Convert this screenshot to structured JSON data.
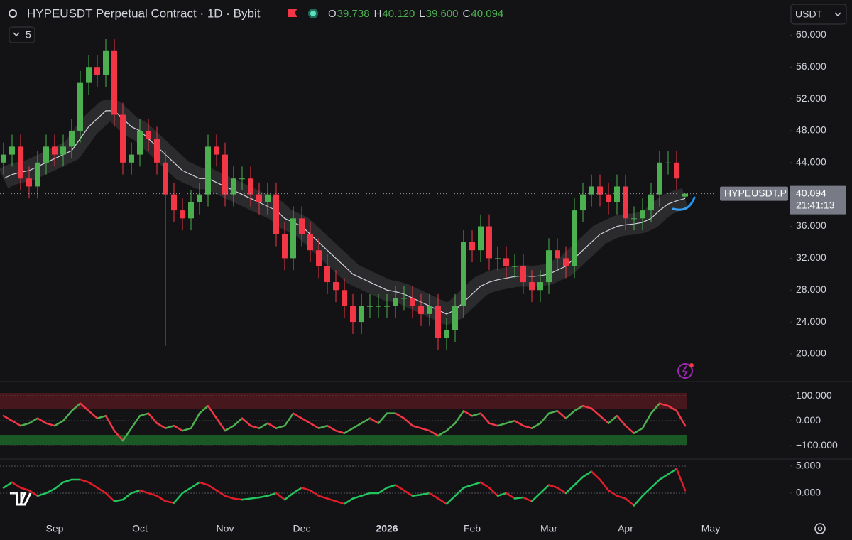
{
  "header": {
    "title": "HYPEUSDT Perpetual Contract · 1D · Bybit",
    "ohlc": [
      {
        "key": "O",
        "value": "39.738"
      },
      {
        "key": "H",
        "value": "40.120"
      },
      {
        "key": "L",
        "value": "39.600"
      },
      {
        "key": "C",
        "value": "40.094"
      }
    ],
    "indicator_count": 5,
    "currency": "USDT"
  },
  "chart_data": [
    {
      "type": "candlestick",
      "categories": [
        null,
        null,
        null,
        null,
        null,
        null,
        "Sep",
        null,
        null,
        null,
        null,
        null,
        null,
        null,
        null,
        null,
        "Oct",
        null,
        null,
        null,
        null,
        null,
        null,
        null,
        null,
        null,
        "Nov",
        null,
        null,
        null,
        null,
        null,
        null,
        null,
        null,
        "Dec",
        null,
        null,
        null,
        null,
        null,
        null,
        null,
        null,
        null,
        "2026",
        null,
        null,
        null,
        null,
        null,
        null,
        null,
        null,
        null,
        "Feb",
        null,
        null,
        null,
        null,
        null,
        null,
        null,
        null,
        "Mar",
        null,
        null,
        null,
        null,
        null,
        null,
        null,
        null,
        "Apr",
        null,
        null,
        null,
        null,
        null,
        null,
        null,
        null,
        null,
        "May",
        null,
        null
      ],
      "open": [
        44,
        45,
        46,
        42,
        41,
        44,
        46,
        45,
        46,
        48,
        54,
        56,
        55,
        58,
        50,
        44,
        45,
        48,
        47,
        44,
        40,
        38,
        37,
        39,
        40,
        46,
        45,
        40,
        42,
        42,
        40,
        39,
        40,
        35,
        32,
        37,
        35,
        33,
        31,
        29,
        28,
        26,
        24,
        26,
        26,
        26,
        26,
        27,
        27,
        26,
        25,
        26,
        22,
        23,
        26,
        34,
        33,
        36,
        32,
        32,
        31,
        31,
        29,
        28,
        29,
        33,
        32,
        31,
        38,
        40,
        41,
        40,
        39,
        41,
        37,
        37,
        38,
        40,
        44,
        44,
        39.738,
        null,
        null,
        null,
        null,
        null
      ],
      "high": [
        46.5,
        47.5,
        47.5,
        43.5,
        45.5,
        47.5,
        47.5,
        47.5,
        49.5,
        55.5,
        57.5,
        57.5,
        59.5,
        59.5,
        51.5,
        46.5,
        49.5,
        49.5,
        48.5,
        45.5,
        41.5,
        39.5,
        40.5,
        41.5,
        47.5,
        47.5,
        46.5,
        43.5,
        43.5,
        43.5,
        41.5,
        41.5,
        41.5,
        36.5,
        38.5,
        38.5,
        36.5,
        34.5,
        32.5,
        30.5,
        29.5,
        27.5,
        27.5,
        27.5,
        27.5,
        27.5,
        28.5,
        28.5,
        28.5,
        27.5,
        27.5,
        27.5,
        24.5,
        27.5,
        35.5,
        35.5,
        37.5,
        37.5,
        33.5,
        33.5,
        32.5,
        32.5,
        30.5,
        30.5,
        34.5,
        34.5,
        33.5,
        39.5,
        41.5,
        42.5,
        42.5,
        41.5,
        42.5,
        42.5,
        38.5,
        39.5,
        41.5,
        45.5,
        45.5,
        45.5,
        40.12,
        null,
        null,
        null,
        null,
        null
      ],
      "low": [
        42.5,
        43.5,
        40.5,
        39.5,
        39.5,
        42.5,
        43.5,
        43.5,
        44.5,
        46.5,
        52.5,
        53.5,
        53.5,
        48.5,
        42.5,
        42.5,
        43.5,
        45.5,
        42.5,
        21,
        36.5,
        35.5,
        35.5,
        37.5,
        38.5,
        43.5,
        38.5,
        38.5,
        40.5,
        38.5,
        37.5,
        37.5,
        33.5,
        30.5,
        30.5,
        33.5,
        31.5,
        29.5,
        27.5,
        26.5,
        24.5,
        22.5,
        22.5,
        24.5,
        24.5,
        24.5,
        24.5,
        25.5,
        24.5,
        23.5,
        23.5,
        20.5,
        20.5,
        21.5,
        24.5,
        31.5,
        31.5,
        30.5,
        30.5,
        29.5,
        29.5,
        27.5,
        26.5,
        26.5,
        27.5,
        30.5,
        29.5,
        29.5,
        36.5,
        38.5,
        38.5,
        37.5,
        37.5,
        35.5,
        35.5,
        35.5,
        36.5,
        38.5,
        42.5,
        40.5,
        39.6,
        null,
        null,
        null,
        null,
        null
      ],
      "close": [
        45,
        46,
        42,
        41,
        44,
        46,
        45,
        46,
        48,
        54,
        56,
        55,
        58,
        50,
        44,
        45,
        48,
        47,
        44,
        40,
        38,
        37,
        39,
        40,
        46,
        45,
        40,
        42,
        42,
        40,
        39,
        40,
        35,
        32,
        37,
        35,
        33,
        31,
        29,
        28,
        26,
        24,
        26,
        26,
        26,
        26,
        27,
        27,
        26,
        25,
        26,
        22,
        23,
        26,
        34,
        33,
        36,
        32,
        32,
        31,
        31,
        29,
        28,
        29,
        33,
        32,
        31,
        38,
        40,
        41,
        40,
        39,
        41,
        37,
        37,
        38,
        40,
        44,
        44,
        42,
        40.094,
        null,
        null,
        null,
        null,
        null
      ],
      "ma": [
        42,
        42.5,
        42.8,
        43,
        43.5,
        44,
        44.5,
        45,
        45.5,
        47,
        48.5,
        49.5,
        50.5,
        50.5,
        49.5,
        48.5,
        48,
        47,
        46,
        45,
        44,
        43,
        42.5,
        42,
        42,
        41.5,
        41,
        40.5,
        40,
        39.5,
        39,
        38.5,
        38,
        37,
        36.5,
        36,
        35,
        34,
        33,
        32,
        31,
        30,
        29.5,
        29,
        28.5,
        28,
        27.8,
        27.5,
        27,
        26.5,
        26,
        25.5,
        25,
        25.5,
        26.5,
        27.5,
        28.5,
        29,
        29.3,
        29.5,
        29.7,
        29.8,
        29.7,
        29.8,
        30,
        30.5,
        31,
        32,
        33,
        34,
        35,
        35.5,
        36,
        36.2,
        36.3,
        36.5,
        37,
        38,
        38.8,
        39.2,
        39.5,
        null,
        null,
        null,
        null,
        null
      ],
      "up_color": "#4caf50",
      "down_color": "#f23645",
      "ma_color": "#d1d4dc",
      "symbol_tag": "HYPEUSDT.P",
      "last_price_label": "40.094",
      "countdown": "21:41:13",
      "ylim": [
        16.7,
        64.4
      ],
      "yticks": [
        {
          "value": 60,
          "label": "60.000"
        },
        {
          "value": 56,
          "label": "56.000"
        },
        {
          "value": 52,
          "label": "52.000"
        },
        {
          "value": 48,
          "label": "48.000"
        },
        {
          "value": 44,
          "label": "44.000"
        },
        {
          "value": 36,
          "label": "36.000"
        },
        {
          "value": 32,
          "label": "32.000"
        },
        {
          "value": 28,
          "label": "28.000"
        },
        {
          "value": 24,
          "label": "24.000"
        },
        {
          "value": 20,
          "label": "20.000"
        }
      ]
    },
    {
      "type": "line",
      "values": [
        20,
        0,
        -20,
        -10,
        10,
        -10,
        -20,
        0,
        40,
        70,
        40,
        10,
        20,
        -40,
        -80,
        -30,
        20,
        30,
        -10,
        -30,
        -20,
        -40,
        -30,
        30,
        60,
        10,
        -40,
        -20,
        10,
        -20,
        -30,
        -10,
        -30,
        -20,
        30,
        10,
        -10,
        -30,
        -20,
        -40,
        -50,
        -30,
        -10,
        10,
        -10,
        30,
        30,
        10,
        -20,
        -30,
        -40,
        -60,
        -40,
        -10,
        40,
        20,
        30,
        -10,
        -20,
        -10,
        0,
        -20,
        -30,
        -10,
        30,
        40,
        10,
        40,
        60,
        50,
        20,
        -10,
        20,
        -20,
        -50,
        -30,
        30,
        70,
        60,
        40,
        -20,
        null,
        null,
        null,
        null,
        null
      ],
      "rise_color": "#4caf50",
      "fall_color": "#f23645",
      "ylim": [
        -151,
        149
      ],
      "yticks": [
        {
          "value": 100,
          "label": "100.000"
        },
        {
          "value": 0,
          "label": "0.000"
        },
        {
          "value": -100,
          "label": "−100.000"
        }
      ]
    },
    {
      "type": "line",
      "values": [
        1,
        2,
        1,
        0.5,
        -0.5,
        0,
        0.8,
        2,
        2.5,
        2.5,
        2,
        1,
        0,
        -1.5,
        -1.2,
        0,
        0.5,
        0,
        -0.5,
        -1.5,
        -1.8,
        0,
        1,
        2,
        1.5,
        0.5,
        -0.5,
        -1,
        -1.2,
        -1,
        -0.8,
        -0.5,
        0,
        -1.2,
        0,
        1,
        0.5,
        -0.5,
        -1,
        -1.5,
        -2,
        -1,
        -0.5,
        0,
        0,
        1,
        1.5,
        0.5,
        -0.5,
        -0.3,
        0,
        -1,
        -2,
        -0.5,
        1,
        1.5,
        2,
        1,
        -0.5,
        0,
        -1,
        -0.8,
        -1.5,
        0,
        1.5,
        1,
        0,
        1.5,
        3,
        4,
        2.5,
        0.5,
        -0.5,
        -1,
        -2.3,
        -0.5,
        1,
        2.5,
        3.5,
        4.5,
        0.5,
        null,
        null,
        null,
        null,
        null
      ],
      "rise_color": "#22c55e",
      "fall_color": "#e11d2a",
      "ylim": [
        -5.4,
        6.05
      ],
      "yticks": [
        {
          "value": 5,
          "label": "5.000"
        },
        {
          "value": 0,
          "label": "0.000"
        }
      ]
    }
  ]
}
